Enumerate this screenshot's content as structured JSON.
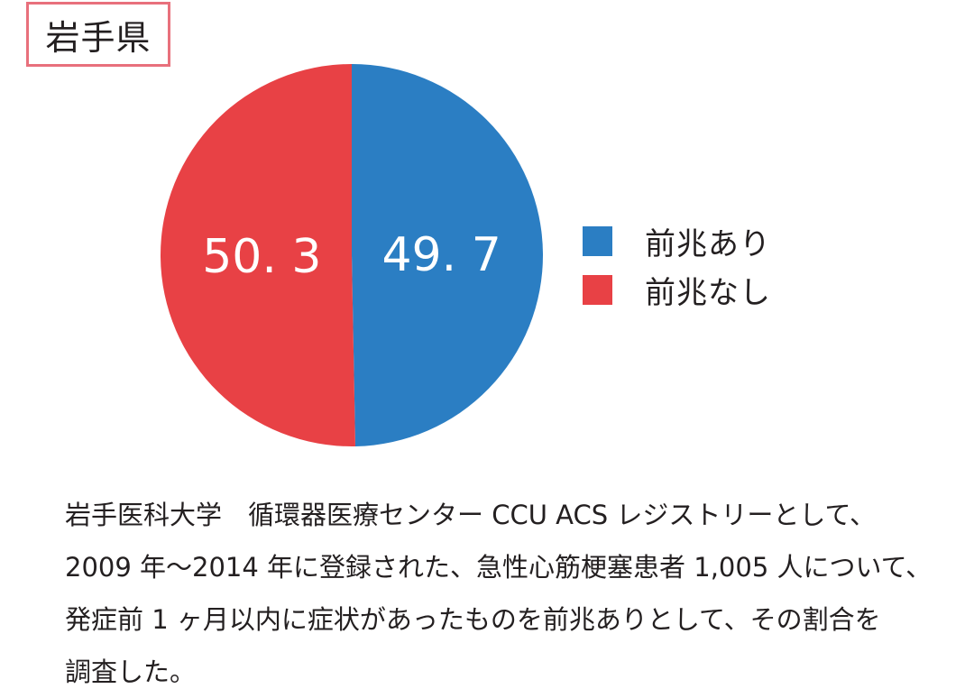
{
  "region": "岩手県",
  "chart_data": {
    "type": "pie",
    "title": "",
    "slices": [
      {
        "label": "前兆あり",
        "value": 49.7,
        "display": "49. 7",
        "color": "#2b7ec3"
      },
      {
        "label": "前兆なし",
        "value": 50.3,
        "display": "50. 3",
        "color": "#e84145"
      }
    ],
    "start_angle_deg": 0,
    "direction": "clockwise",
    "legend_position": "right"
  },
  "description": [
    "岩手医科大学　循環器医療センター CCU ACS レジストリーとして、",
    "2009 年〜2014 年に登録された、急性心筋梗塞患者 1,005 人について、",
    "発症前 1 ヶ月以内に症状があったものを前兆ありとして、その割合を",
    "調査した。"
  ]
}
